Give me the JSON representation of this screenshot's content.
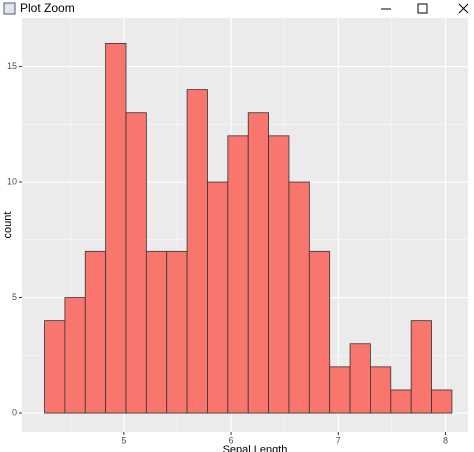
{
  "window": {
    "title": "Plot Zoom"
  },
  "chart_data": {
    "type": "histogram",
    "x_label": "Sepal.Length",
    "y_label": "count",
    "bins": [
      4.26,
      4.45,
      4.64,
      4.83,
      5.02,
      5.21,
      5.4,
      5.59,
      5.78,
      5.97,
      6.16,
      6.35,
      6.54,
      6.73,
      6.92,
      7.11,
      7.3,
      7.49,
      7.68,
      7.87,
      8.06
    ],
    "counts": [
      4,
      5,
      7,
      16,
      13,
      7,
      7,
      14,
      10,
      12,
      13,
      12,
      10,
      7,
      2,
      3,
      2,
      1,
      4,
      1
    ],
    "color": "#F8766D",
    "edge_color": "#333333",
    "xlim": [
      4.05,
      8.21
    ],
    "ylim": [
      -0.82,
      17.1
    ],
    "xticks": [
      5,
      6,
      7,
      8
    ],
    "yticks": [
      0,
      5,
      10,
      15
    ],
    "grid": true,
    "panel_color": "#EBEBEB"
  }
}
